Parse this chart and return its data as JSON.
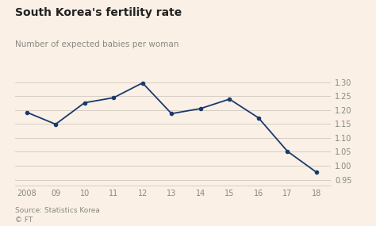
{
  "title": "South Korea's fertility rate",
  "subtitle": "Number of expected babies per woman",
  "source": "Source: Statistics Korea\n© FT",
  "years": [
    2008,
    2009,
    2010,
    2011,
    2012,
    2013,
    2014,
    2015,
    2016,
    2017,
    2018
  ],
  "x_labels": [
    "2008",
    "09",
    "10",
    "11",
    "12",
    "13",
    "14",
    "15",
    "16",
    "17",
    "18"
  ],
  "values": [
    1.192,
    1.149,
    1.226,
    1.244,
    1.297,
    1.187,
    1.205,
    1.239,
    1.172,
    1.052,
    0.977
  ],
  "ylim": [
    0.93,
    1.335
  ],
  "yticks": [
    0.95,
    1.0,
    1.05,
    1.1,
    1.15,
    1.2,
    1.25,
    1.3
  ],
  "line_color": "#1a3a6b",
  "marker_color": "#1a3a6b",
  "bg_color": "#faf0e6",
  "grid_color": "#d0c8be",
  "title_fontsize": 10,
  "subtitle_fontsize": 7.5,
  "source_fontsize": 6.5,
  "tick_fontsize": 7
}
